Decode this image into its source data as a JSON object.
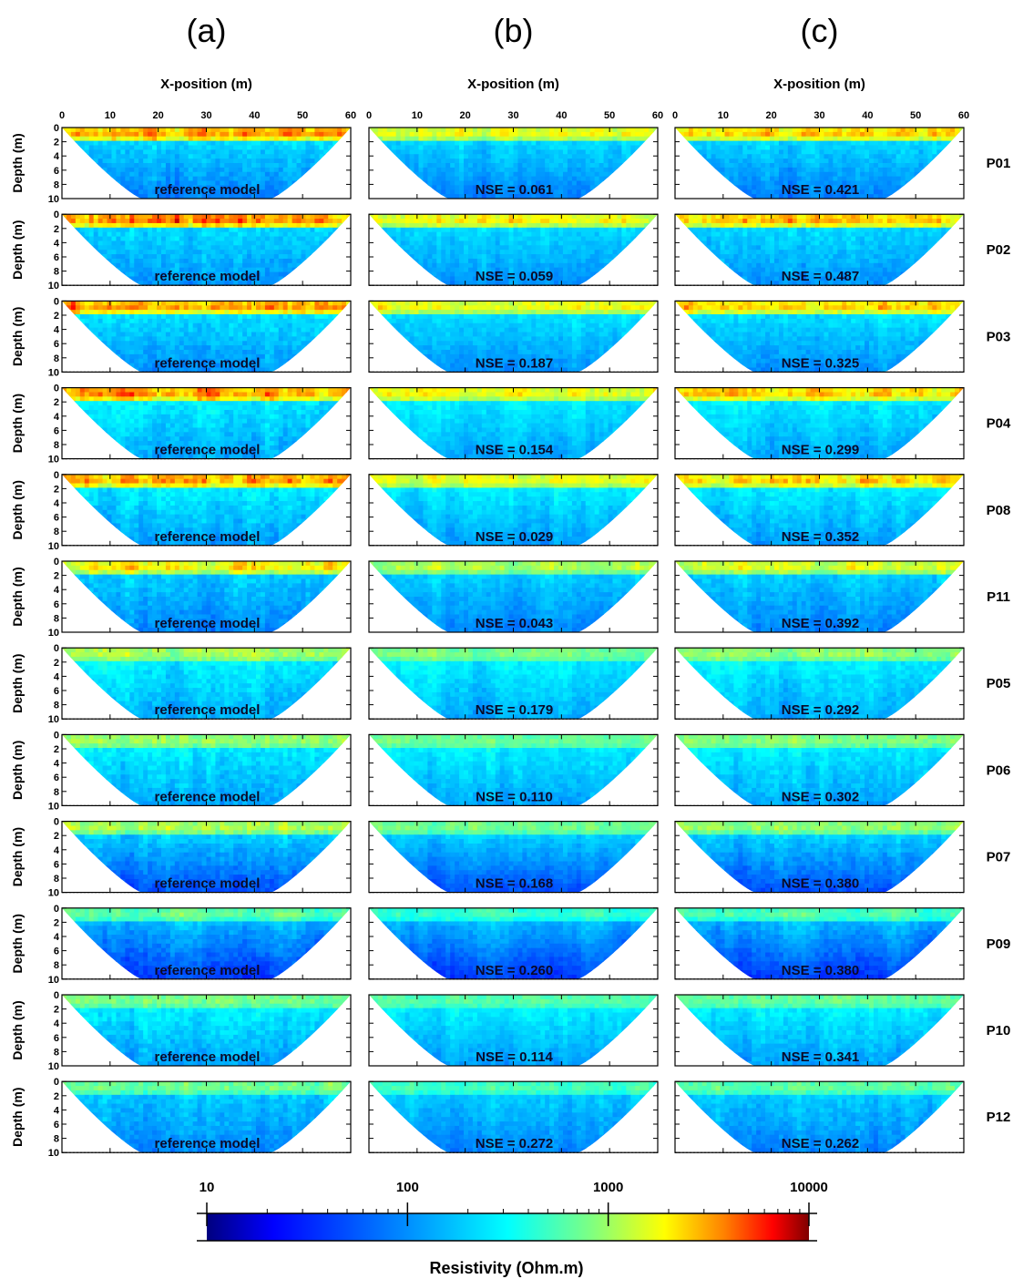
{
  "figure": {
    "column_labels": [
      "(a)",
      "(b)",
      "(c)"
    ],
    "x_axis_title": "X-position (m)",
    "y_axis_title": "Depth (m)",
    "colorbar_title": "Resistivity (Ohm.m)",
    "colorbar_ticks": [
      "10",
      "100",
      "1000",
      "10000"
    ]
  },
  "chart_data": {
    "type": "heatmap",
    "description_type": "electrical resistivity tomography sections",
    "x_axis": {
      "label": "X-position (m)",
      "range": [
        0,
        60
      ],
      "ticks": [
        0,
        10,
        20,
        30,
        40,
        50,
        60
      ]
    },
    "y_axis": {
      "label": "Depth (m)",
      "range": [
        0,
        10
      ],
      "ticks": [
        0,
        2,
        4,
        6,
        8,
        10
      ],
      "inverted": true
    },
    "color_scale": {
      "label": "Resistivity (Ohm.m)",
      "scale": "log",
      "range": [
        10,
        10000
      ],
      "ticks": [
        10,
        100,
        1000,
        10000
      ],
      "colormap": "jet",
      "colors": [
        "#00007f",
        "#0000ff",
        "#007fff",
        "#00ffff",
        "#7fff7f",
        "#ffff00",
        "#ff7f00",
        "#ff0000",
        "#7f0000"
      ]
    },
    "columns": [
      "(a)",
      "(b)",
      "(c)"
    ],
    "profiles": [
      {
        "name": "P01",
        "labels": [
          "reference model",
          "NSE = 0.061",
          "NSE = 0.421"
        ],
        "nse": [
          null,
          0.061,
          0.421
        ]
      },
      {
        "name": "P02",
        "labels": [
          "reference model",
          "NSE = 0.059",
          "NSE = 0.487"
        ],
        "nse": [
          null,
          0.059,
          0.487
        ]
      },
      {
        "name": "P03",
        "labels": [
          "reference model",
          "NSE = 0.187",
          "NSE = 0.325"
        ],
        "nse": [
          null,
          0.187,
          0.325
        ]
      },
      {
        "name": "P04",
        "labels": [
          "reference model",
          "NSE = 0.154",
          "NSE = 0.299"
        ],
        "nse": [
          null,
          0.154,
          0.299
        ]
      },
      {
        "name": "P08",
        "labels": [
          "reference model",
          "NSE = 0.029",
          "NSE = 0.352"
        ],
        "nse": [
          null,
          0.029,
          0.352
        ]
      },
      {
        "name": "P11",
        "labels": [
          "reference model",
          "NSE = 0.043",
          "NSE = 0.392"
        ],
        "nse": [
          null,
          0.043,
          0.392
        ]
      },
      {
        "name": "P05",
        "labels": [
          "reference model",
          "NSE = 0.179",
          "NSE = 0.292"
        ],
        "nse": [
          null,
          0.179,
          0.292
        ]
      },
      {
        "name": "P06",
        "labels": [
          "reference model",
          "NSE = 0.110",
          "NSE = 0.302"
        ],
        "nse": [
          null,
          0.11,
          0.302
        ]
      },
      {
        "name": "P07",
        "labels": [
          "reference model",
          "NSE = 0.168",
          "NSE = 0.380"
        ],
        "nse": [
          null,
          0.168,
          0.38
        ]
      },
      {
        "name": "P09",
        "labels": [
          "reference model",
          "NSE = 0.260",
          "NSE = 0.380"
        ],
        "nse": [
          null,
          0.26,
          0.38
        ]
      },
      {
        "name": "P10",
        "labels": [
          "reference model",
          "NSE = 0.114",
          "NSE = 0.341"
        ],
        "nse": [
          null,
          0.114,
          0.341
        ]
      },
      {
        "name": "P12",
        "labels": [
          "reference model",
          "NSE = 0.272",
          "NSE = 0.262"
        ],
        "nse": [
          null,
          0.272,
          0.262
        ]
      }
    ]
  }
}
